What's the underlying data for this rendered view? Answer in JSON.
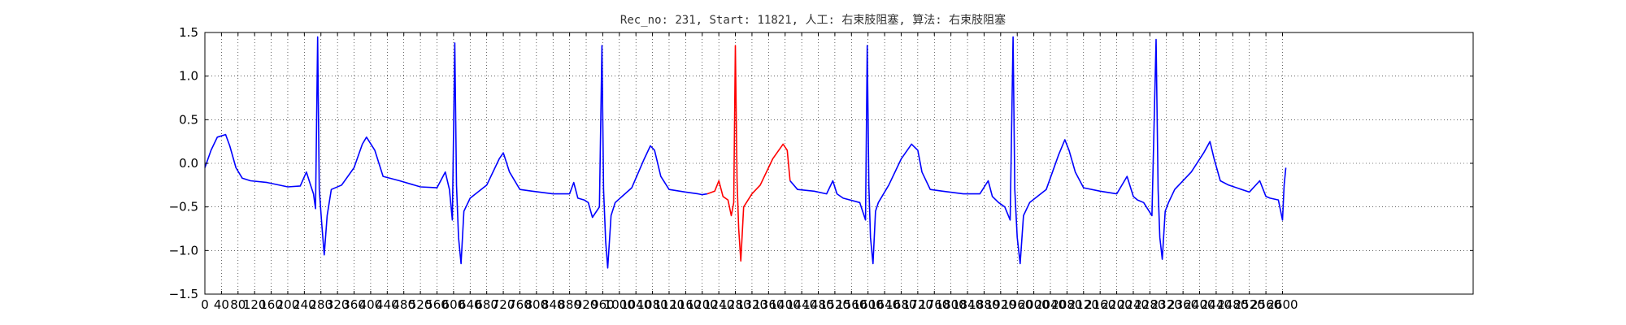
{
  "chart_data": {
    "type": "line",
    "title": "Rec_no: 231, Start: 11821, 人工: 右束肢阻塞, 算法: 右束肢阻塞",
    "xlabel": "",
    "ylabel": "",
    "xlim": [
      0,
      3060
    ],
    "ylim": [
      -1.5,
      1.5
    ],
    "grid": true,
    "x_ticks": [
      0,
      40,
      80,
      120,
      160,
      200,
      240,
      280,
      320,
      360,
      400,
      440,
      480,
      520,
      560,
      600,
      640,
      680,
      720,
      760,
      800,
      840,
      880,
      920,
      960,
      1000,
      1040,
      1080,
      1120,
      1160,
      1200,
      1240,
      1280,
      1320,
      1360,
      1400,
      1440,
      1480,
      1520,
      1560,
      1600,
      1640,
      1680,
      1720,
      1760,
      1800,
      1840,
      1880,
      1920,
      1960,
      2000,
      2040,
      2080,
      2120,
      2160,
      2200,
      2240,
      2280,
      2320,
      2360,
      2400,
      2440,
      2480,
      2520,
      2560,
      2600
    ],
    "x_tick_labels": [
      "0",
      "40",
      "80",
      "120",
      "160",
      "200",
      "240",
      "280",
      "320",
      "360",
      "400",
      "440",
      "480",
      "520",
      "560",
      "600",
      "640",
      "680",
      "720",
      "760",
      "800",
      "840",
      "880",
      "920",
      "960",
      "1000",
      "1040",
      "1080",
      "1120",
      "1160",
      "1200",
      "1240",
      "1280",
      "1320",
      "1360",
      "1400",
      "1440",
      "1480",
      "1520",
      "1560",
      "1600",
      "1640",
      "1680",
      "1720",
      "1760",
      "1800",
      "1840",
      "1880",
      "1920",
      "1960",
      "2000",
      "2040",
      "2080",
      "2120",
      "2160",
      "2200",
      "2240",
      "2280",
      "2320",
      "2360",
      "2400",
      "2440",
      "2480",
      "2520",
      "2560",
      "2600"
    ],
    "y_ticks": [
      -1.5,
      -1.0,
      -0.5,
      0.0,
      0.5,
      1.0,
      1.5
    ],
    "y_tick_labels": [
      "−1.5",
      "−1.0",
      "−0.5",
      "0.0",
      "0.5",
      "1.0",
      "1.5"
    ],
    "beats_r_peaks": [
      272,
      603,
      958,
      1280,
      1602,
      1950,
      2300
    ],
    "series": [
      {
        "color": "#0000ff",
        "x": [
          0,
          15,
          30,
          50,
          60,
          75,
          90,
          110,
          150,
          200,
          230,
          245,
          255,
          262,
          267,
          272,
          276,
          282,
          288,
          295,
          305,
          330,
          360,
          380,
          390,
          410,
          430,
          470,
          520,
          560,
          580,
          590,
          597,
          603,
          607,
          612,
          618,
          625,
          640,
          680,
          710,
          720,
          735,
          760,
          790,
          840,
          880,
          890,
          900,
          915,
          925,
          935,
          952,
          958,
          962,
          967,
          972,
          980,
          990,
          1030,
          1060,
          1075,
          1085,
          1100,
          1120,
          1160,
          1190,
          1200,
          1212
        ],
        "y": [
          -0.05,
          0.15,
          0.3,
          0.33,
          0.2,
          -0.05,
          -0.17,
          -0.2,
          -0.22,
          -0.27,
          -0.26,
          -0.1,
          -0.25,
          -0.35,
          -0.52,
          1.45,
          -0.3,
          -0.7,
          -1.05,
          -0.6,
          -0.3,
          -0.25,
          -0.05,
          0.22,
          0.3,
          0.15,
          -0.15,
          -0.2,
          -0.27,
          -0.28,
          -0.1,
          -0.3,
          -0.65,
          1.38,
          -0.25,
          -0.85,
          -1.15,
          -0.55,
          -0.4,
          -0.25,
          0.05,
          0.12,
          -0.1,
          -0.3,
          -0.32,
          -0.35,
          -0.35,
          -0.22,
          -0.4,
          -0.42,
          -0.45,
          -0.62,
          -0.5,
          1.35,
          -0.3,
          -0.9,
          -1.2,
          -0.6,
          -0.45,
          -0.28,
          0.05,
          0.2,
          0.15,
          -0.15,
          -0.3,
          -0.33,
          -0.35,
          -0.36,
          -0.35
        ]
      },
      {
        "color": "#ff0000",
        "x": [
          1212,
          1230,
          1240,
          1250,
          1262,
          1270,
          1276,
          1280,
          1284,
          1288,
          1293,
          1300,
          1320,
          1340,
          1370,
          1395,
          1405,
          1412
        ],
        "y": [
          -0.35,
          -0.32,
          -0.2,
          -0.38,
          -0.42,
          -0.6,
          -0.45,
          1.35,
          -0.2,
          -0.75,
          -1.12,
          -0.5,
          -0.35,
          -0.25,
          0.05,
          0.22,
          0.15,
          -0.2
        ]
      },
      {
        "color": "#0000ff",
        "x": [
          1412,
          1430,
          1470,
          1500,
          1515,
          1525,
          1540,
          1580,
          1594,
          1598,
          1602,
          1606,
          1612,
          1618,
          1625,
          1650,
          1680,
          1705,
          1720,
          1730,
          1750,
          1780,
          1830,
          1870,
          1890,
          1900,
          1915,
          1930,
          1943,
          1950,
          1954,
          1960,
          1967,
          1975,
          1990,
          2030,
          2060,
          2075,
          2085,
          2100,
          2120,
          2160,
          2200,
          2225,
          2240,
          2250,
          2265,
          2285,
          2295,
          2300,
          2304,
          2310,
          2317,
          2325,
          2340,
          2380,
          2410,
          2425,
          2435,
          2450,
          2470,
          2520,
          2545,
          2560,
          2570,
          2590,
          2600,
          2604,
          2608
        ],
        "y": [
          -0.2,
          -0.3,
          -0.32,
          -0.35,
          -0.2,
          -0.35,
          -0.4,
          -0.45,
          -0.65,
          1.35,
          -0.25,
          -0.85,
          -1.15,
          -0.55,
          -0.45,
          -0.25,
          0.05,
          0.22,
          0.15,
          -0.1,
          -0.3,
          -0.32,
          -0.35,
          -0.35,
          -0.2,
          -0.38,
          -0.45,
          -0.5,
          -0.65,
          1.45,
          -0.3,
          -0.85,
          -1.15,
          -0.6,
          -0.45,
          -0.3,
          0.1,
          0.27,
          0.15,
          -0.1,
          -0.28,
          -0.32,
          -0.35,
          -0.15,
          -0.38,
          -0.42,
          -0.45,
          -0.6,
          1.42,
          -0.3,
          -0.85,
          -1.1,
          -0.55,
          -0.45,
          -0.3,
          -0.1,
          0.12,
          0.25,
          0.05,
          -0.2,
          -0.25,
          -0.33,
          -0.2,
          -0.38,
          -0.4,
          -0.42,
          -0.65,
          -0.25,
          -0.05
        ]
      }
    ]
  }
}
